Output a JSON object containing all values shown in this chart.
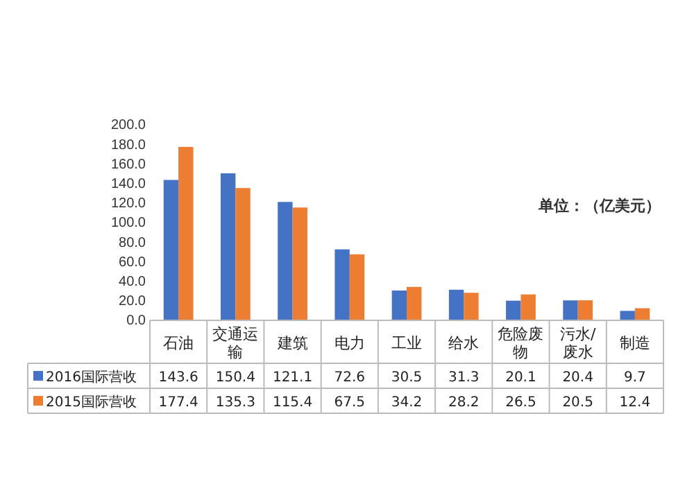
{
  "chart_data": {
    "type": "bar",
    "categories": [
      "石油",
      "交通运输",
      "建筑",
      "电力",
      "工业",
      "给水",
      "危险废物",
      "污水/废水",
      "制造"
    ],
    "series": [
      {
        "name": "2016国际营收",
        "color": "#4472c4",
        "values": [
          143.6,
          150.4,
          121.1,
          72.6,
          30.5,
          31.3,
          20.1,
          20.4,
          9.7
        ]
      },
      {
        "name": "2015国际营收",
        "color": "#ed7d31",
        "values": [
          177.4,
          135.3,
          115.4,
          67.5,
          34.2,
          28.2,
          26.5,
          20.5,
          12.4
        ]
      }
    ],
    "ylim": [
      0,
      200
    ],
    "yticks": [
      {
        "value": 0,
        "label": "0.0"
      },
      {
        "value": 20,
        "label": "20.0"
      },
      {
        "value": 40,
        "label": "40.0"
      },
      {
        "value": 60,
        "label": "60.0"
      },
      {
        "value": 80,
        "label": "80.0"
      },
      {
        "value": 100,
        "label": "100.0"
      },
      {
        "value": 120,
        "label": "120.0"
      },
      {
        "value": 140,
        "label": "140.0"
      },
      {
        "value": 160,
        "label": "160.0"
      },
      {
        "value": 180,
        "label": "180.0"
      },
      {
        "value": 200,
        "label": "200.0"
      }
    ],
    "annotations": [
      "单位：（亿美元）"
    ],
    "data_labels": true,
    "legend": "bottom",
    "grid": false
  }
}
